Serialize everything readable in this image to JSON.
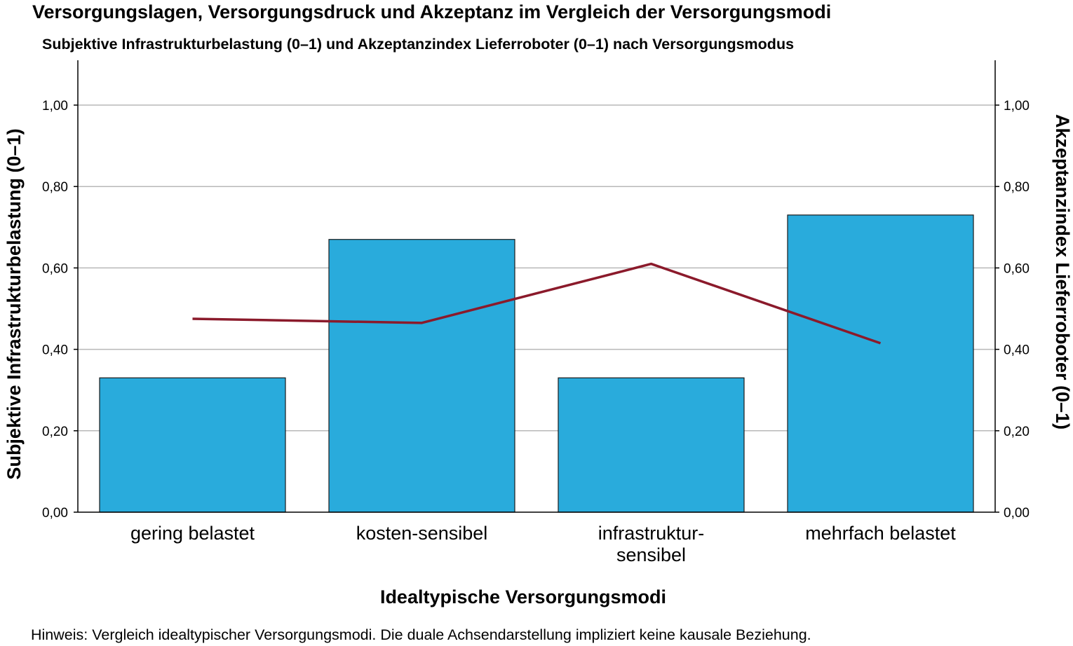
{
  "title": "Versorgungslagen, Versorgungsdruck und Akzeptanz im Vergleich der Versorgungsmodi",
  "subtitle": "Subjektive Infrastrukturbelastung (0–1) und Akzeptanzindex Lieferroboter (0–1) nach Versorgungsmodus",
  "footnote": "Hinweis: Vergleich idealtypischer Versorgungsmodi. Die duale Achsendarstellung impliziert keine kausale Beziehung.",
  "colors": {
    "bar": "#29abdc",
    "bar_border": "#1a1a1a",
    "line": "#8b1a2b",
    "grid": "#b8b8b8",
    "axis": "#000000"
  },
  "chart_data": {
    "type": "bar",
    "categories": [
      [
        "gering belastet"
      ],
      [
        "kosten-sensibel"
      ],
      [
        "infrastruktur-",
        "sensibel"
      ],
      [
        "mehrfach belastet"
      ]
    ],
    "xlabel": "Idealtypische Versorgungsmodi",
    "ylabel": "Subjektive Infrastrukturbelastung (0–1)",
    "ylabel_right": "Akzeptanzindex Lieferroboter (0–1)",
    "ylim": [
      0,
      1.1
    ],
    "yticks": [
      "0,00",
      "0,20",
      "0,40",
      "0,60",
      "0,80",
      "1,00"
    ],
    "ytick_values": [
      0,
      0.2,
      0.4,
      0.6,
      0.8,
      1.0
    ],
    "grid": true,
    "series": [
      {
        "type": "bar",
        "axis": "left",
        "values": [
          0.33,
          0.67,
          0.33,
          0.73
        ]
      },
      {
        "type": "line",
        "axis": "right",
        "values": [
          0.475,
          0.465,
          0.61,
          0.415
        ]
      }
    ]
  }
}
